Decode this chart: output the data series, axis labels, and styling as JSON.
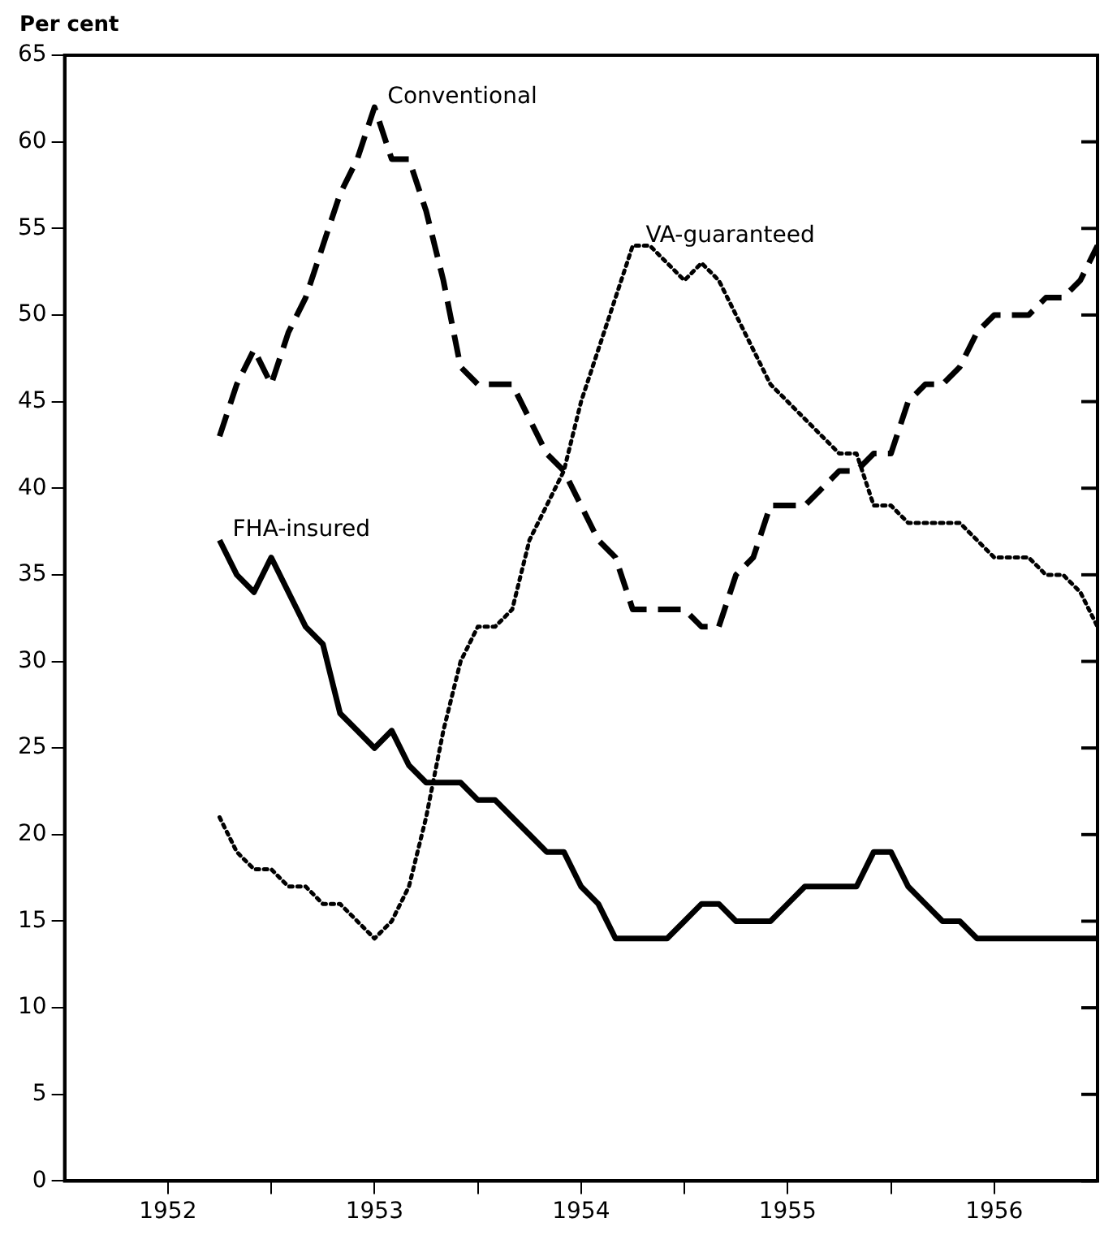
{
  "chart_data": {
    "type": "line",
    "ylabel": "Per cent",
    "grid": false,
    "legend": false,
    "marker": "none",
    "x": [
      "1952-10",
      "1952-11",
      "1952-12",
      "1953-01",
      "1953-02",
      "1953-03",
      "1953-04",
      "1953-05",
      "1953-06",
      "1953-07",
      "1953-08",
      "1953-09",
      "1953-10",
      "1953-11",
      "1953-12",
      "1954-01",
      "1954-02",
      "1954-03",
      "1954-04",
      "1954-05",
      "1954-06",
      "1954-07",
      "1954-08",
      "1954-09",
      "1954-10",
      "1954-11",
      "1954-12",
      "1955-01",
      "1955-02",
      "1955-03",
      "1955-04",
      "1955-05",
      "1955-06",
      "1955-07",
      "1955-08",
      "1955-09",
      "1955-10",
      "1955-11",
      "1955-12",
      "1956-01",
      "1956-02",
      "1956-03",
      "1956-04",
      "1956-05",
      "1956-06",
      "1956-07",
      "1956-08",
      "1956-09",
      "1956-10",
      "1956-11",
      "1956-12",
      "1957-01"
    ],
    "xlim": [
      "1952-01",
      "1957-01"
    ],
    "xticks": [
      {
        "value": "1952-07",
        "label": "1952"
      },
      {
        "value": "1953-01",
        "label": null
      },
      {
        "value": "1953-07",
        "label": "1953"
      },
      {
        "value": "1954-01",
        "label": null
      },
      {
        "value": "1954-07",
        "label": "1954"
      },
      {
        "value": "1955-01",
        "label": null
      },
      {
        "value": "1955-07",
        "label": "1955"
      },
      {
        "value": "1956-01",
        "label": null
      },
      {
        "value": "1956-07",
        "label": "1956"
      }
    ],
    "ylim": [
      0,
      65
    ],
    "yticks": [
      0,
      5,
      10,
      15,
      20,
      25,
      30,
      35,
      40,
      45,
      50,
      55,
      60,
      65
    ],
    "series": [
      {
        "name": "Conventional",
        "color": "#000000",
        "line_style": "dashed",
        "values": [
          43,
          46,
          48,
          46,
          49,
          51,
          54,
          57,
          59,
          62,
          59,
          59,
          56,
          52,
          47,
          46,
          46,
          46,
          44,
          42,
          41,
          39,
          37,
          36,
          33,
          33,
          33,
          33,
          32,
          32,
          35,
          36,
          39,
          39,
          39,
          40,
          41,
          41,
          42,
          42,
          45,
          46,
          46,
          47,
          49,
          50,
          50,
          50,
          51,
          51,
          52,
          54
        ]
      },
      {
        "name": "VA-guaranteed",
        "color": "#000000",
        "line_style": "dotted",
        "values": [
          21,
          19,
          18,
          18,
          17,
          17,
          16,
          16,
          15,
          14,
          15,
          17,
          21,
          26,
          30,
          32,
          32,
          33,
          37,
          39,
          41,
          45,
          48,
          51,
          54,
          54,
          53,
          52,
          53,
          52,
          50,
          48,
          46,
          45,
          44,
          43,
          42,
          42,
          39,
          39,
          38,
          38,
          38,
          38,
          37,
          36,
          36,
          36,
          35,
          35,
          34,
          32
        ]
      },
      {
        "name": "FHA-insured",
        "color": "#000000",
        "line_style": "solid",
        "values": [
          37,
          35,
          34,
          36,
          34,
          32,
          31,
          27,
          26,
          25,
          26,
          24,
          23,
          23,
          23,
          22,
          22,
          21,
          20,
          19,
          19,
          17,
          16,
          14,
          14,
          14,
          14,
          15,
          16,
          16,
          15,
          15,
          15,
          16,
          17,
          17,
          17,
          17,
          19,
          19,
          17,
          16,
          15,
          15,
          14,
          14,
          14,
          14,
          14,
          14,
          14,
          14
        ]
      }
    ]
  }
}
